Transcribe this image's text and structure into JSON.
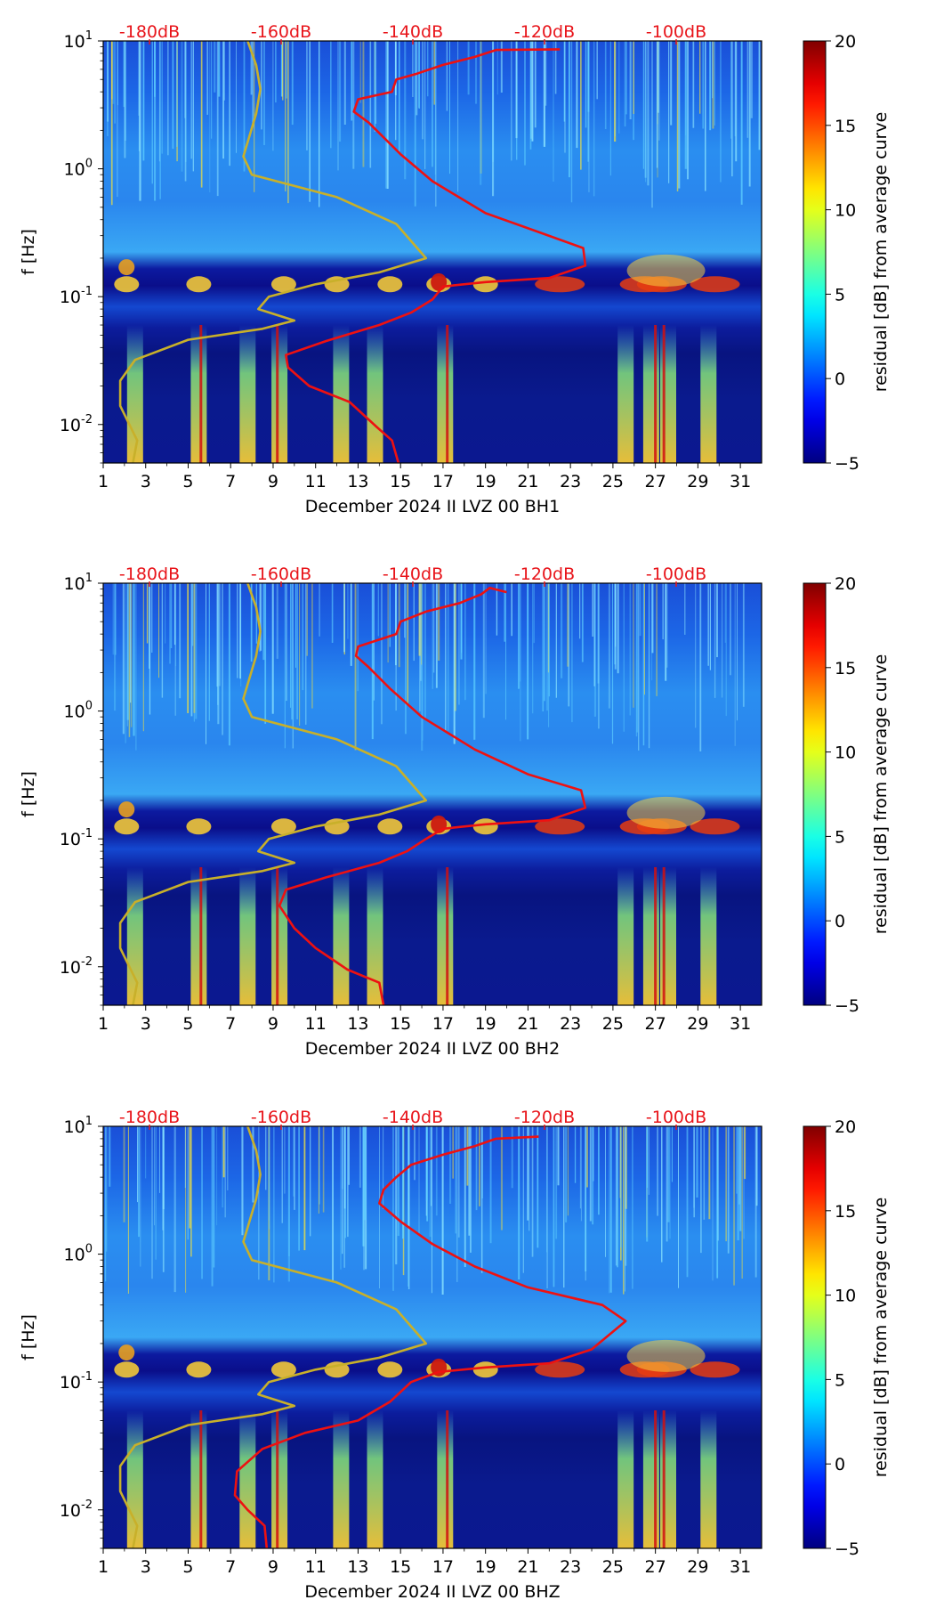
{
  "colors": {
    "noise_model_curve": "#c8b02a",
    "station_noise_curve": "#ee1111",
    "db_label": "#e8141a"
  },
  "chart_data": [
    {
      "type": "heatmap",
      "title": "",
      "xlabel": "December 2024 II LVZ 00 BH1",
      "ylabel": "f [Hz]",
      "x_ticks": [
        "1",
        "3",
        "5",
        "7",
        "9",
        "11",
        "13",
        "15",
        "17",
        "19",
        "21",
        "23",
        "25",
        "27",
        "29",
        "31"
      ],
      "xlim": [
        1,
        32
      ],
      "ylim": [
        0.005,
        10
      ],
      "y_ticks": [
        {
          "value": 0.01,
          "exp": "-2"
        },
        {
          "value": 0.1,
          "exp": "-1"
        },
        {
          "value": 1,
          "exp": "0"
        },
        {
          "value": 10,
          "exp": "1"
        }
      ],
      "y_tick_base": "10",
      "db_labels": [
        "-180dB",
        "-160dB",
        "-140dB",
        "-120dB",
        "-100dB"
      ],
      "colorbar": {
        "label": "residual [dB] from average curve",
        "range": [
          -5,
          20
        ],
        "ticks": [
          "−5",
          "0",
          "5",
          "10",
          "15",
          "20"
        ],
        "colormap": "jet"
      },
      "series": [
        {
          "name": "noise model (yellow)",
          "color": "#c8b02a",
          "points": [
            [
              2.4,
              0.005
            ],
            [
              2.6,
              0.0075
            ],
            [
              1.8,
              0.014
            ],
            [
              1.8,
              0.022
            ],
            [
              2.5,
              0.032
            ],
            [
              5,
              0.046
            ],
            [
              8.5,
              0.056
            ],
            [
              10,
              0.065
            ],
            [
              8.3,
              0.08
            ],
            [
              8.8,
              0.1
            ],
            [
              11,
              0.125
            ],
            [
              14,
              0.155
            ],
            [
              16.2,
              0.2
            ],
            [
              14.8,
              0.37
            ],
            [
              12,
              0.6
            ],
            [
              8,
              0.9
            ],
            [
              7.6,
              1.25
            ],
            [
              8.2,
              2.7
            ],
            [
              8.4,
              4.2
            ],
            [
              8.2,
              6.5
            ],
            [
              7.8,
              10
            ]
          ]
        },
        {
          "name": "station noise (red)",
          "color": "#ee1111",
          "points": [
            [
              14.9,
              0.005
            ],
            [
              14.6,
              0.0075
            ],
            [
              13.9,
              0.0095
            ],
            [
              12.6,
              0.015
            ],
            [
              10.7,
              0.02
            ],
            [
              9.7,
              0.028
            ],
            [
              9.6,
              0.035
            ],
            [
              11.5,
              0.045
            ],
            [
              14,
              0.06
            ],
            [
              15.5,
              0.075
            ],
            [
              16.5,
              0.095
            ],
            [
              17,
              0.12
            ],
            [
              19,
              0.13
            ],
            [
              22,
              0.14
            ],
            [
              23.7,
              0.175
            ],
            [
              23.6,
              0.24
            ],
            [
              21.5,
              0.32
            ],
            [
              19,
              0.45
            ],
            [
              16.5,
              0.8
            ],
            [
              15,
              1.3
            ],
            [
              13.5,
              2.3
            ],
            [
              12.8,
              2.8
            ],
            [
              13,
              3.5
            ],
            [
              14.6,
              4
            ],
            [
              14.8,
              5
            ],
            [
              15.7,
              5.5
            ],
            [
              17,
              6.5
            ],
            [
              18.5,
              7.5
            ],
            [
              19.5,
              8.5
            ],
            [
              22.5,
              8.6
            ]
          ]
        }
      ]
    },
    {
      "type": "heatmap",
      "title": "",
      "xlabel": "December 2024 II LVZ 00 BH2",
      "ylabel": "f [Hz]",
      "x_ticks": [
        "1",
        "3",
        "5",
        "7",
        "9",
        "11",
        "13",
        "15",
        "17",
        "19",
        "21",
        "23",
        "25",
        "27",
        "29",
        "31"
      ],
      "xlim": [
        1,
        32
      ],
      "ylim": [
        0.005,
        10
      ],
      "y_ticks": [
        {
          "value": 0.01,
          "exp": "-2"
        },
        {
          "value": 0.1,
          "exp": "-1"
        },
        {
          "value": 1,
          "exp": "0"
        },
        {
          "value": 10,
          "exp": "1"
        }
      ],
      "y_tick_base": "10",
      "db_labels": [
        "-180dB",
        "-160dB",
        "-140dB",
        "-120dB",
        "-100dB"
      ],
      "colorbar": {
        "label": "residual [dB] from average curve",
        "range": [
          -5,
          20
        ],
        "ticks": [
          "−5",
          "0",
          "5",
          "10",
          "15",
          "20"
        ],
        "colormap": "jet"
      },
      "series": [
        {
          "name": "noise model (yellow)",
          "color": "#c8b02a",
          "points": [
            [
              2.4,
              0.005
            ],
            [
              2.6,
              0.0075
            ],
            [
              1.8,
              0.014
            ],
            [
              1.8,
              0.022
            ],
            [
              2.5,
              0.032
            ],
            [
              5,
              0.046
            ],
            [
              8.5,
              0.056
            ],
            [
              10,
              0.065
            ],
            [
              8.3,
              0.08
            ],
            [
              8.8,
              0.1
            ],
            [
              11,
              0.125
            ],
            [
              14,
              0.155
            ],
            [
              16.2,
              0.2
            ],
            [
              14.8,
              0.37
            ],
            [
              12,
              0.6
            ],
            [
              8,
              0.9
            ],
            [
              7.6,
              1.25
            ],
            [
              8.2,
              2.7
            ],
            [
              8.4,
              4.2
            ],
            [
              8.2,
              6.5
            ],
            [
              7.8,
              10
            ]
          ]
        },
        {
          "name": "station noise (red)",
          "color": "#ee1111",
          "points": [
            [
              14.2,
              0.005
            ],
            [
              14,
              0.0075
            ],
            [
              12.5,
              0.0095
            ],
            [
              11,
              0.014
            ],
            [
              10,
              0.02
            ],
            [
              9.3,
              0.03
            ],
            [
              9.6,
              0.04
            ],
            [
              11.5,
              0.05
            ],
            [
              14,
              0.065
            ],
            [
              15.3,
              0.08
            ],
            [
              16.2,
              0.1
            ],
            [
              17,
              0.12
            ],
            [
              19,
              0.13
            ],
            [
              22,
              0.14
            ],
            [
              23.7,
              0.175
            ],
            [
              23.5,
              0.24
            ],
            [
              21,
              0.32
            ],
            [
              18.5,
              0.5
            ],
            [
              16,
              0.9
            ],
            [
              14.5,
              1.5
            ],
            [
              13.5,
              2.2
            ],
            [
              12.9,
              2.7
            ],
            [
              13,
              3.2
            ],
            [
              14.8,
              4
            ],
            [
              15,
              5
            ],
            [
              16.2,
              6
            ],
            [
              17.8,
              7
            ],
            [
              18.8,
              8.2
            ],
            [
              19.2,
              9.2
            ],
            [
              20,
              8.5
            ]
          ]
        }
      ]
    },
    {
      "type": "heatmap",
      "title": "",
      "xlabel": "December 2024 II LVZ 00 BHZ",
      "ylabel": "f [Hz]",
      "x_ticks": [
        "1",
        "3",
        "5",
        "7",
        "9",
        "11",
        "13",
        "15",
        "17",
        "19",
        "21",
        "23",
        "25",
        "27",
        "29",
        "31"
      ],
      "xlim": [
        1,
        32
      ],
      "ylim": [
        0.005,
        10
      ],
      "y_ticks": [
        {
          "value": 0.01,
          "exp": "-2"
        },
        {
          "value": 0.1,
          "exp": "-1"
        },
        {
          "value": 1,
          "exp": "0"
        },
        {
          "value": 10,
          "exp": "1"
        }
      ],
      "y_tick_base": "10",
      "db_labels": [
        "-180dB",
        "-160dB",
        "-140dB",
        "-120dB",
        "-100dB"
      ],
      "colorbar": {
        "label": "residual [dB] from average curve",
        "range": [
          -5,
          20
        ],
        "ticks": [
          "−5",
          "0",
          "5",
          "10",
          "15",
          "20"
        ],
        "colormap": "jet"
      },
      "series": [
        {
          "name": "noise model (yellow)",
          "color": "#c8b02a",
          "points": [
            [
              2.4,
              0.005
            ],
            [
              2.6,
              0.0075
            ],
            [
              1.8,
              0.014
            ],
            [
              1.8,
              0.022
            ],
            [
              2.5,
              0.032
            ],
            [
              5,
              0.046
            ],
            [
              8.5,
              0.056
            ],
            [
              10,
              0.065
            ],
            [
              8.3,
              0.08
            ],
            [
              8.8,
              0.1
            ],
            [
              11,
              0.125
            ],
            [
              14,
              0.155
            ],
            [
              16.2,
              0.2
            ],
            [
              14.8,
              0.37
            ],
            [
              12,
              0.6
            ],
            [
              8,
              0.9
            ],
            [
              7.6,
              1.25
            ],
            [
              8.2,
              2.7
            ],
            [
              8.4,
              4.2
            ],
            [
              8.2,
              6.5
            ],
            [
              7.8,
              10
            ]
          ]
        },
        {
          "name": "station noise (red)",
          "color": "#ee1111",
          "points": [
            [
              8.7,
              0.005
            ],
            [
              8.6,
              0.0075
            ],
            [
              7.8,
              0.01
            ],
            [
              7.2,
              0.013
            ],
            [
              7.3,
              0.02
            ],
            [
              8.5,
              0.03
            ],
            [
              10.5,
              0.04
            ],
            [
              13,
              0.05
            ],
            [
              14.5,
              0.07
            ],
            [
              15.5,
              0.1
            ],
            [
              16.8,
              0.12
            ],
            [
              19,
              0.13
            ],
            [
              22,
              0.14
            ],
            [
              24,
              0.18
            ],
            [
              25.6,
              0.3
            ],
            [
              24.5,
              0.4
            ],
            [
              21,
              0.55
            ],
            [
              18.5,
              0.8
            ],
            [
              16.5,
              1.2
            ],
            [
              15,
              1.8
            ],
            [
              14,
              2.5
            ],
            [
              14.2,
              3.2
            ],
            [
              14.8,
              4
            ],
            [
              15.5,
              5
            ],
            [
              17,
              6
            ],
            [
              18.5,
              7
            ],
            [
              19.5,
              8
            ],
            [
              21.5,
              8.3
            ]
          ]
        }
      ]
    }
  ]
}
